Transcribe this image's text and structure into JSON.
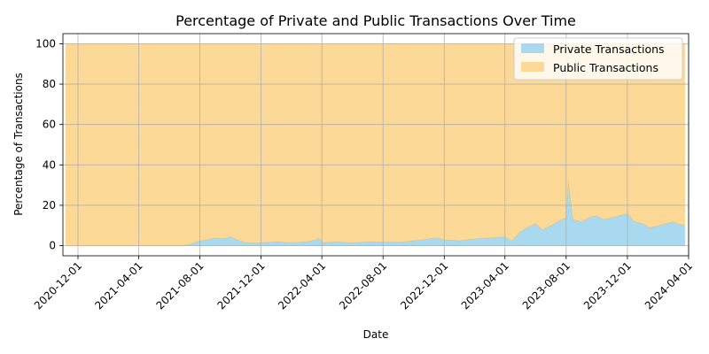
{
  "chart_data": {
    "type": "area",
    "stacked": true,
    "title": "Percentage of Private and Public Transactions Over Time",
    "xlabel": "Date",
    "ylabel": "Percentage of Transactions",
    "xlim": [
      "2020-11-01",
      "2024-04-01"
    ],
    "ylim": [
      -5,
      105
    ],
    "yticks": [
      0,
      20,
      40,
      60,
      80,
      100
    ],
    "xticks": [
      "2020-12-01",
      "2021-04-01",
      "2021-08-01",
      "2021-12-01",
      "2022-04-01",
      "2022-08-01",
      "2022-12-01",
      "2023-04-01",
      "2023-08-01",
      "2023-12-01",
      "2024-04-01"
    ],
    "grid": true,
    "legend": {
      "position": "top-right"
    },
    "x": [
      "2020-11-06",
      "2021-06-25",
      "2021-07-15",
      "2021-08-01",
      "2021-08-15",
      "2021-09-01",
      "2021-09-15",
      "2021-10-01",
      "2021-10-15",
      "2021-11-01",
      "2021-12-01",
      "2022-01-01",
      "2022-02-01",
      "2022-03-01",
      "2022-03-20",
      "2022-03-25",
      "2022-04-05",
      "2022-05-01",
      "2022-06-01",
      "2022-07-01",
      "2022-08-01",
      "2022-09-01",
      "2022-10-01",
      "2022-11-01",
      "2022-11-15",
      "2022-12-01",
      "2023-01-01",
      "2023-02-01",
      "2023-03-01",
      "2023-04-01",
      "2023-04-15",
      "2023-05-01",
      "2023-05-15",
      "2023-06-01",
      "2023-06-15",
      "2023-07-01",
      "2023-07-15",
      "2023-08-01",
      "2023-08-05",
      "2023-08-15",
      "2023-09-01",
      "2023-09-15",
      "2023-10-01",
      "2023-10-15",
      "2023-11-01",
      "2023-11-15",
      "2023-12-01",
      "2023-12-15",
      "2024-01-01",
      "2024-01-15",
      "2024-02-01",
      "2024-02-15",
      "2024-03-01",
      "2024-03-10",
      "2024-03-25"
    ],
    "series": [
      {
        "name": "Private Transactions",
        "color": "#a8d9ee",
        "values": [
          0,
          0,
          1,
          2.5,
          3,
          4,
          3.5,
          4.5,
          3,
          1.5,
          1.5,
          2,
          1.5,
          2,
          3,
          4,
          1.5,
          2,
          1.5,
          2,
          2,
          1.8,
          2.5,
          3.5,
          4,
          3,
          2.5,
          3.5,
          4,
          4.5,
          2.5,
          7,
          9,
          11,
          8,
          10,
          12,
          14,
          33,
          13,
          12,
          14,
          15,
          13,
          14,
          15,
          16,
          12,
          11,
          9,
          10,
          11,
          12,
          11,
          10
        ]
      },
      {
        "name": "Public Transactions",
        "color": "#fdd998",
        "values": [
          100,
          100,
          99,
          97.5,
          97,
          96,
          96.5,
          95.5,
          97,
          98.5,
          98.5,
          98,
          98.5,
          98,
          97,
          96,
          98.5,
          98,
          98.5,
          98,
          98,
          98.2,
          97.5,
          96.5,
          96,
          97,
          97.5,
          96.5,
          96,
          95.5,
          97.5,
          93,
          91,
          89,
          92,
          90,
          88,
          86,
          67,
          87,
          88,
          86,
          85,
          87,
          86,
          85,
          84,
          88,
          89,
          91,
          90,
          89,
          88,
          89,
          90
        ]
      }
    ]
  }
}
